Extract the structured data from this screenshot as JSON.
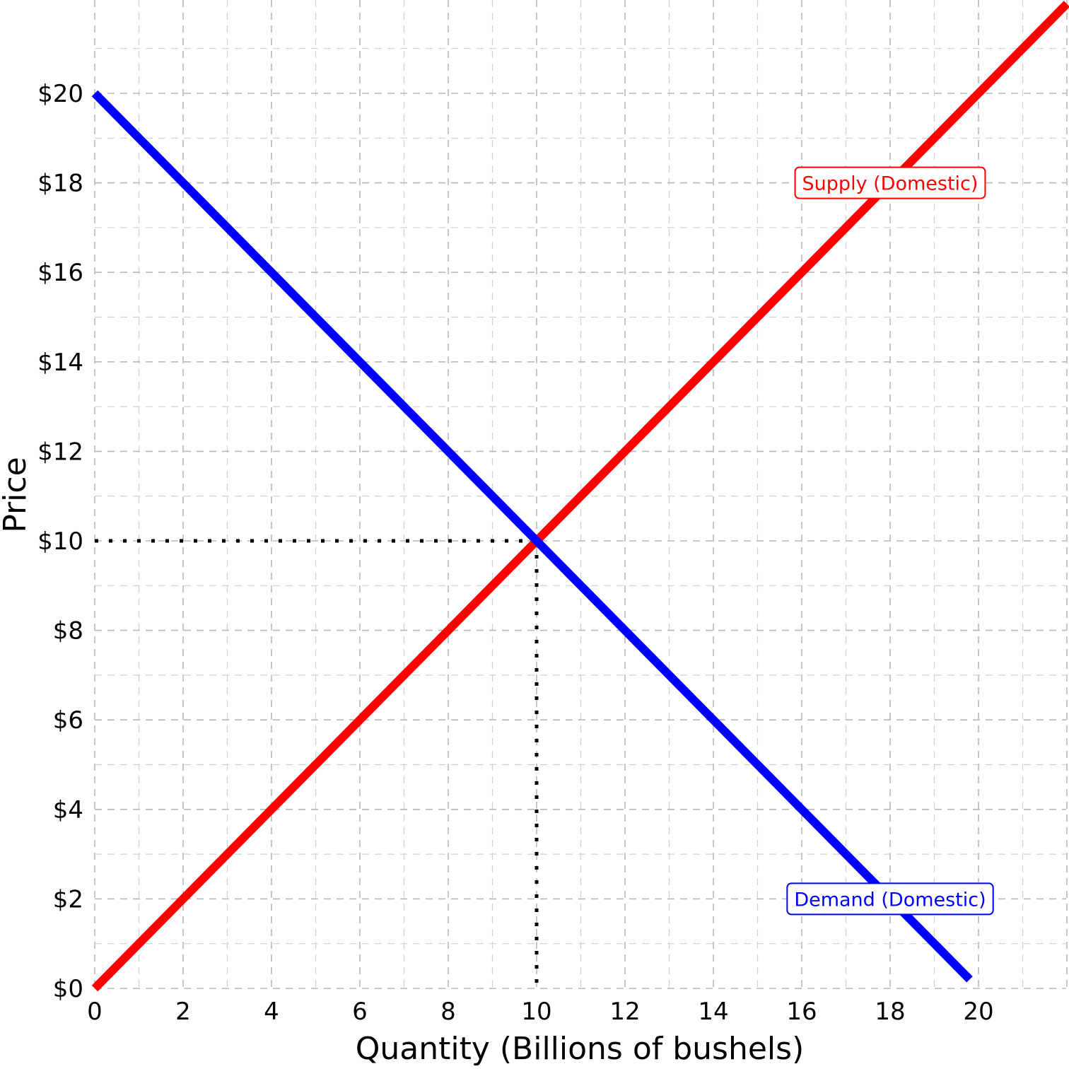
{
  "chart_data": {
    "type": "line",
    "xlabel": "Quantity (Billions of bushels)",
    "ylabel": "Price",
    "xlim": [
      0,
      22
    ],
    "ylim": [
      0,
      21
    ],
    "x_ticks": [
      0,
      2,
      4,
      6,
      8,
      10,
      12,
      14,
      16,
      18,
      20
    ],
    "x_tick_labels": [
      "0",
      "2",
      "4",
      "6",
      "8",
      "10",
      "12",
      "14",
      "16",
      "18",
      "20"
    ],
    "y_ticks": [
      0,
      2,
      4,
      6,
      8,
      10,
      12,
      14,
      16,
      18,
      20
    ],
    "y_tick_labels": [
      "$0",
      "$2",
      "$4",
      "$6",
      "$8",
      "$10",
      "$12",
      "$14",
      "$16",
      "$18",
      "$20"
    ],
    "grid": "dashed major and minor gridlines",
    "series": [
      {
        "name": "Supply (Domestic)",
        "color": "#ff0000",
        "x": [
          0,
          22
        ],
        "y": [
          0,
          22
        ]
      },
      {
        "name": "Demand (Domestic)",
        "color": "#0000ff",
        "x": [
          0,
          19.8
        ],
        "y": [
          20,
          0.2
        ]
      }
    ],
    "annotations": [
      {
        "text": "Supply (Domestic)",
        "x": 18,
        "y": 18,
        "color": "#ff0000",
        "style": "boxed label"
      },
      {
        "text": "Demand (Domestic)",
        "x": 18,
        "y": 2,
        "color": "#0000ff",
        "style": "boxed label"
      }
    ],
    "equilibrium": {
      "x": 10,
      "y": 10,
      "guides": "dotted lines to both axes",
      "color": "#000000"
    }
  }
}
